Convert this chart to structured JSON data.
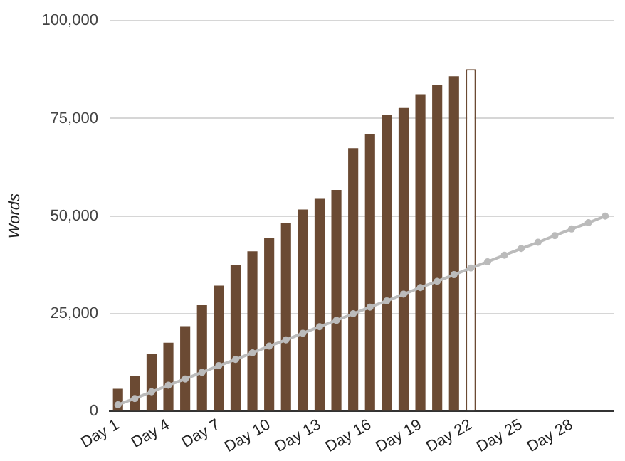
{
  "chart_data": {
    "type": "bar",
    "ylabel": "Words",
    "categories": [
      "Day 1",
      null,
      null,
      "Day 4",
      null,
      null,
      "Day 7",
      null,
      null,
      "Day 10",
      null,
      null,
      "Day 13",
      null,
      null,
      "Day 16",
      null,
      null,
      "Day 19",
      null,
      null,
      "Day 22",
      null,
      null,
      "Day 25",
      null,
      null,
      "Day 28",
      null,
      null
    ],
    "series": [
      {
        "color": "#6b4a33",
        "colors": [
          "#6b4a33",
          "#6b4a33",
          "#6b4a33",
          "#6b4a33",
          "#6b4a33",
          "#6b4a33",
          "#6b4a33",
          "#6b4a33",
          "#6b4a33",
          "#6b4a33",
          "#6b4a33",
          "#6b4a33",
          "#6b4a33",
          "#6b4a33",
          "#6b4a33",
          "#6b4a33",
          "#6b4a33",
          "#6b4a33",
          "#6b4a33",
          "#6b4a33",
          "#6b4a33",
          "#ffffff",
          null,
          null,
          null,
          null,
          null,
          null,
          null,
          null
        ],
        "values": [
          5800,
          9100,
          14600,
          17600,
          21800,
          27200,
          32200,
          37500,
          41000,
          44400,
          48300,
          51700,
          54400,
          56700,
          67400,
          70900,
          75800,
          77700,
          81200,
          83500,
          85800,
          87600,
          null,
          null,
          null,
          null,
          null,
          null,
          null,
          null
        ]
      },
      {
        "type": "line",
        "color": "#bbbbbb",
        "marker": "circle",
        "line_style": "solid",
        "values": [
          1700,
          3300,
          5000,
          6700,
          8300,
          10000,
          11700,
          13300,
          15000,
          16700,
          18300,
          20000,
          21700,
          23300,
          25000,
          26700,
          28300,
          30000,
          31700,
          33300,
          35000,
          36700,
          38300,
          40000,
          41700,
          43300,
          45000,
          46700,
          48300,
          50000
        ]
      }
    ],
    "ylim": [
      0,
      100000
    ],
    "yticks": [
      0,
      {
        "value": 25000,
        "label": "25,000"
      },
      {
        "value": 50000,
        "label": "50,000"
      },
      {
        "value": 75000,
        "label": "75,000"
      },
      {
        "value": 100000,
        "label": "100,000"
      }
    ],
    "grid": "y",
    "legend": false
  }
}
